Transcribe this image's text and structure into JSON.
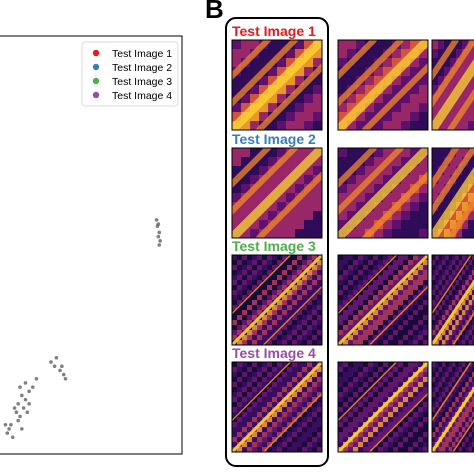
{
  "panel_letter": "B",
  "colors": {
    "test_image_1": "#e41a1c",
    "test_image_2": "#377eb8",
    "test_image_3": "#4daf4a",
    "test_image_4": "#984ea3",
    "background_points": "#555555",
    "heatmap_colormap": "inferno"
  },
  "chart_data": [
    {
      "type": "scatter",
      "title": "",
      "xlabel": "",
      "ylabel": "",
      "grid": false,
      "legend_position": "top-right",
      "series": [
        {
          "name": "Test Image 1",
          "color": "#e41a1c",
          "points": []
        },
        {
          "name": "Test Image 2",
          "color": "#377eb8",
          "points": []
        },
        {
          "name": "Test Image 3",
          "color": "#4daf4a",
          "points": []
        },
        {
          "name": "Test Image 4",
          "color": "#984ea3",
          "points": []
        }
      ],
      "background_points": [
        [
          0.86,
          0.56
        ],
        [
          0.87,
          0.55
        ],
        [
          0.865,
          0.545
        ],
        [
          0.875,
          0.53
        ],
        [
          0.87,
          0.52
        ],
        [
          0.88,
          0.51
        ],
        [
          0.875,
          0.5
        ],
        [
          0.28,
          0.22
        ],
        [
          0.3,
          0.21
        ],
        [
          0.33,
          0.2
        ],
        [
          0.35,
          0.19
        ],
        [
          0.31,
          0.23
        ],
        [
          0.36,
          0.18
        ],
        [
          0.34,
          0.21
        ],
        [
          0.1,
          0.12
        ],
        [
          0.12,
          0.14
        ],
        [
          0.14,
          0.13
        ],
        [
          0.09,
          0.1
        ],
        [
          0.11,
          0.09
        ],
        [
          0.13,
          0.11
        ],
        [
          0.16,
          0.15
        ],
        [
          0.08,
          0.11
        ],
        [
          0.05,
          0.06
        ],
        [
          0.04,
          0.05
        ],
        [
          0.06,
          0.07
        ],
        [
          0.1,
          0.08
        ],
        [
          0.14,
          0.17
        ],
        [
          0.16,
          0.12
        ],
        [
          0.07,
          0.04
        ],
        [
          0.12,
          0.06
        ],
        [
          0.15,
          0.1
        ],
        [
          0.03,
          0.07
        ],
        [
          0.18,
          0.16
        ],
        [
          0.2,
          0.18
        ],
        [
          0.11,
          0.16
        ]
      ]
    },
    {
      "type": "heatmap",
      "title": "",
      "grid": false,
      "colormap": "inferno",
      "rows": [
        {
          "label": "Test Image 1",
          "color": "#e41a1c",
          "pattern": "smooth-bands"
        },
        {
          "label": "Test Image 2",
          "color": "#377eb8",
          "pattern": "smooth-bands"
        },
        {
          "label": "Test Image 3",
          "color": "#4daf4a",
          "pattern": "fine-texture"
        },
        {
          "label": "Test Image 4",
          "color": "#984ea3",
          "pattern": "fine-texture"
        }
      ],
      "columns": 3
    }
  ]
}
